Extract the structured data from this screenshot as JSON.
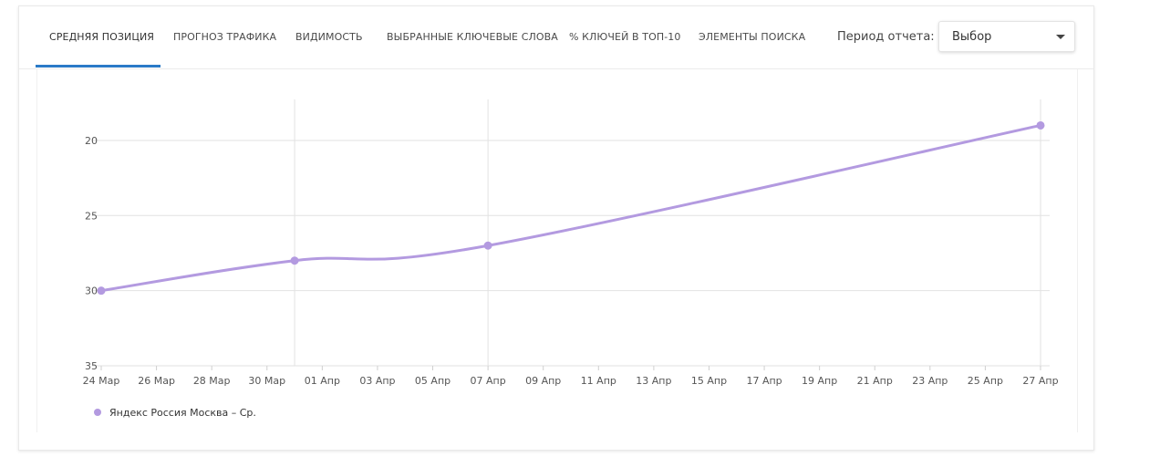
{
  "tabs": [
    {
      "label": "СРЕДНЯЯ ПОЗИЦИЯ",
      "active": true
    },
    {
      "label": "ПРОГНОЗ ТРАФИКА",
      "active": false
    },
    {
      "label": "ВИДИМОСТЬ",
      "active": false
    },
    {
      "label": "ВЫБРАННЫЕ КЛЮЧЕВЫЕ СЛОВА",
      "active": false
    },
    {
      "label": "% КЛЮЧЕЙ В ТОП-10",
      "active": false
    },
    {
      "label": "ЭЛЕМЕНТЫ ПОИСКА",
      "active": false
    }
  ],
  "period": {
    "label": "Период отчета:",
    "value": "Выбор"
  },
  "colors": {
    "accent": "#2a7ac7",
    "series": "#b39ae0"
  },
  "chart_data": {
    "type": "line",
    "x_ticks": [
      "24 Мар",
      "26 Мар",
      "28 Мар",
      "30 Мар",
      "01 Апр",
      "03 Апр",
      "05 Апр",
      "07 Апр",
      "09 Апр",
      "11 Апр",
      "13 Апр",
      "15 Апр",
      "17 Апр",
      "19 Апр",
      "21 Апр",
      "23 Апр",
      "25 Апр",
      "27 Апр"
    ],
    "y_ticks": [
      20,
      25,
      30,
      35
    ],
    "ylim": [
      18,
      35
    ],
    "y_inverted": true,
    "grid": true,
    "legend_position": "bottom-left",
    "series": [
      {
        "name": "Яндекс Россия Москва – Ср.",
        "color": "#b39ae0",
        "points": [
          {
            "x": "24 Мар",
            "y": 30
          },
          {
            "x": "31 Мар",
            "y": 28
          },
          {
            "x": "07 Апр",
            "y": 27
          },
          {
            "x": "27 Апр",
            "y": 19
          }
        ]
      }
    ]
  }
}
